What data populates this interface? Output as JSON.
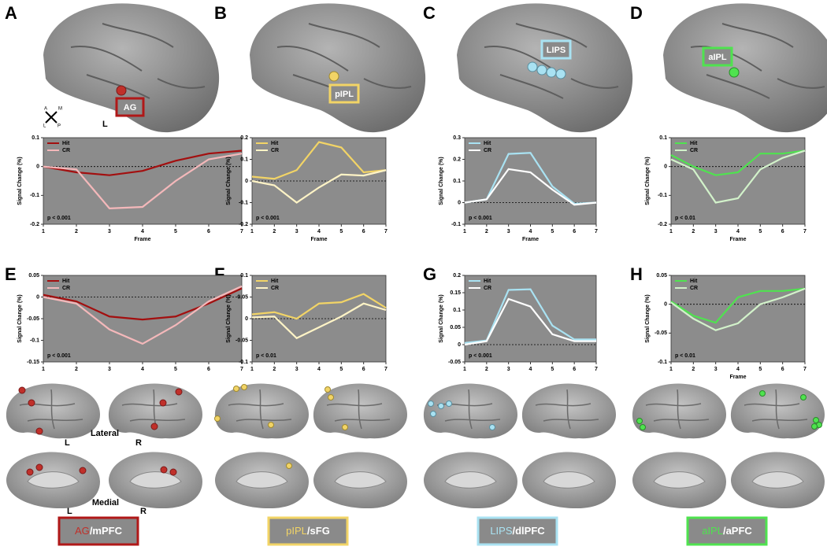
{
  "panels": [
    "A",
    "B",
    "C",
    "D",
    "E",
    "F",
    "G",
    "H"
  ],
  "region_labels": [
    "AG",
    "pIPL",
    "LIPS",
    "aIPL"
  ],
  "compass": {
    "a": "A",
    "m": "M",
    "l": "L",
    "p": "P"
  },
  "brain_labels": {
    "top_l": "L",
    "lateral_l": "L",
    "lateral": "Lateral",
    "lateral_r": "R",
    "medial_l": "L",
    "medial": "Medial",
    "medial_r": "R"
  },
  "network_boxes": [
    {
      "seed": "AG",
      "target": "/mPFC"
    },
    {
      "seed": "pIPL",
      "target": "/sFG"
    },
    {
      "seed": "LIPS",
      "target": "/dlPFC"
    },
    {
      "seed": "aIPL",
      "target": "/aPFC"
    }
  ],
  "chart_data": [
    {
      "type": "line",
      "ylabel": "Signal Change (%)",
      "xlabel": "Frame",
      "annotation": "p < 0.001",
      "zero_line": true,
      "x": [
        1,
        2,
        3,
        4,
        5,
        6,
        7
      ],
      "xlim": [
        1,
        7
      ],
      "xticks": [
        1,
        2,
        3,
        4,
        5,
        6,
        7
      ],
      "ylim": [
        -0.2,
        0.1
      ],
      "yticks": [
        -0.2,
        -0.1,
        0,
        0.1
      ],
      "series": [
        {
          "name": "Hit",
          "color": "#a30f0f",
          "values": [
            0,
            -0.02,
            -0.03,
            -0.015,
            0.02,
            0.045,
            0.055
          ]
        },
        {
          "name": "CR",
          "color": "#f4b8ba",
          "values": [
            0,
            -0.01,
            -0.145,
            -0.14,
            -0.05,
            0.025,
            0.045
          ]
        }
      ]
    },
    {
      "type": "line",
      "ylabel": "Signal Change (%)",
      "xlabel": "Frame",
      "annotation": "p < 0.001",
      "zero_line": true,
      "x": [
        1,
        2,
        3,
        4,
        5,
        6,
        7
      ],
      "xlim": [
        1,
        7
      ],
      "xticks": [
        1,
        2,
        3,
        4,
        5,
        6,
        7
      ],
      "ylim": [
        -0.2,
        0.2
      ],
      "yticks": [
        -0.2,
        -0.1,
        0,
        0.1,
        0.2
      ],
      "series": [
        {
          "name": "Hit",
          "color": "#f2d466",
          "values": [
            0.02,
            0.01,
            0.05,
            0.18,
            0.155,
            0.04,
            0.05
          ]
        },
        {
          "name": "CR",
          "color": "#fff4c6",
          "values": [
            0,
            -0.02,
            -0.1,
            -0.03,
            0.03,
            0.025,
            0.05
          ]
        }
      ]
    },
    {
      "type": "line",
      "ylabel": "Signal Change (%)",
      "xlabel": "Frame",
      "annotation": "p < 0.001",
      "zero_line": true,
      "x": [
        1,
        2,
        3,
        4,
        5,
        6,
        7
      ],
      "xlim": [
        1,
        7
      ],
      "xticks": [
        1,
        2,
        3,
        4,
        5,
        6,
        7
      ],
      "ylim": [
        -0.1,
        0.3
      ],
      "yticks": [
        -0.1,
        0,
        0.1,
        0.2,
        0.3
      ],
      "series": [
        {
          "name": "Hit",
          "color": "#a9e2f2",
          "values": [
            0,
            0.015,
            0.225,
            0.23,
            0.075,
            -0.005,
            0
          ]
        },
        {
          "name": "CR",
          "color": "#ffffff",
          "values": [
            0,
            0.015,
            0.155,
            0.14,
            0.06,
            -0.01,
            0
          ]
        }
      ]
    },
    {
      "type": "line",
      "ylabel": "Signal Change (%)",
      "xlabel": "Frame",
      "annotation": "p < 0.01",
      "zero_line": true,
      "x": [
        1,
        2,
        3,
        4,
        5,
        6,
        7
      ],
      "xlim": [
        1,
        7
      ],
      "xticks": [
        1,
        2,
        3,
        4,
        5,
        6,
        7
      ],
      "ylim": [
        -0.2,
        0.1
      ],
      "yticks": [
        -0.2,
        -0.1,
        0,
        0.1
      ],
      "series": [
        {
          "name": "Hit",
          "color": "#4fe34f",
          "values": [
            0.04,
            0,
            -0.03,
            -0.02,
            0.045,
            0.045,
            0.055
          ]
        },
        {
          "name": "CR",
          "color": "#d2f2ca",
          "values": [
            0.025,
            -0.01,
            -0.125,
            -0.11,
            -0.01,
            0.03,
            0.055
          ]
        }
      ]
    },
    {
      "type": "line",
      "ylabel": "Signal Change (%)",
      "annotation": "p < 0.001",
      "zero_line": true,
      "x": [
        1,
        2,
        3,
        4,
        5,
        6,
        7
      ],
      "xlim": [
        1,
        7
      ],
      "xticks": [
        1,
        2,
        3,
        4,
        5,
        6,
        7
      ],
      "ylim": [
        -0.15,
        0.05
      ],
      "yticks": [
        -0.15,
        -0.1,
        -0.05,
        0,
        0.05
      ],
      "series": [
        {
          "name": "Hit",
          "color": "#a30f0f",
          "values": [
            0.005,
            -0.01,
            -0.045,
            -0.052,
            -0.045,
            -0.015,
            0.02
          ]
        },
        {
          "name": "CR",
          "color": "#f4b8ba",
          "values": [
            0,
            -0.015,
            -0.075,
            -0.108,
            -0.065,
            -0.01,
            0.025
          ]
        }
      ]
    },
    {
      "type": "line",
      "ylabel": "Signal Change (%)",
      "annotation": "p < 0.01",
      "zero_line": true,
      "x": [
        1,
        2,
        3,
        4,
        5,
        6,
        7
      ],
      "xlim": [
        1,
        7
      ],
      "xticks": [
        1,
        2,
        3,
        4,
        5,
        6,
        7
      ],
      "ylim": [
        -0.1,
        0.1
      ],
      "yticks": [
        -0.1,
        -0.05,
        0,
        0.05,
        0.1
      ],
      "series": [
        {
          "name": "Hit",
          "color": "#f2d466",
          "values": [
            0.01,
            0.015,
            0,
            0.035,
            0.038,
            0.057,
            0.025
          ]
        },
        {
          "name": "CR",
          "color": "#fff4c6",
          "values": [
            0.003,
            0.005,
            -0.045,
            -0.02,
            0.005,
            0.035,
            0.02
          ]
        }
      ]
    },
    {
      "type": "line",
      "ylabel": "Signal Change (%)",
      "annotation": "p < 0.001",
      "zero_line": true,
      "x": [
        1,
        2,
        3,
        4,
        5,
        6,
        7
      ],
      "xlim": [
        1,
        7
      ],
      "xticks": [
        1,
        2,
        3,
        4,
        5,
        6,
        7
      ],
      "ylim": [
        -0.05,
        0.2
      ],
      "yticks": [
        -0.05,
        0,
        0.05,
        0.1,
        0.15,
        0.2
      ],
      "series": [
        {
          "name": "Hit",
          "color": "#a9e2f2",
          "values": [
            0.005,
            0.012,
            0.158,
            0.16,
            0.055,
            0.015,
            0.015
          ]
        },
        {
          "name": "CR",
          "color": "#ffffff",
          "values": [
            0,
            0.01,
            0.132,
            0.11,
            0.03,
            0.01,
            0.01
          ]
        }
      ]
    },
    {
      "type": "line",
      "ylabel": "Signal Change (%)",
      "xlabel": "Frame",
      "annotation": "p < 0.01",
      "zero_line": true,
      "x": [
        1,
        2,
        3,
        4,
        5,
        6,
        7
      ],
      "xlim": [
        1,
        7
      ],
      "xticks": [
        1,
        2,
        3,
        4,
        5,
        6,
        7
      ],
      "ylim": [
        -0.1,
        0.05
      ],
      "yticks": [
        -0.1,
        -0.05,
        0,
        0.05
      ],
      "series": [
        {
          "name": "Hit",
          "color": "#4fe34f",
          "values": [
            0.005,
            -0.02,
            -0.032,
            0.012,
            0.023,
            0.023,
            0.027
          ]
        },
        {
          "name": "CR",
          "color": "#d2f2ca",
          "values": [
            0.003,
            -0.025,
            -0.045,
            -0.033,
            0,
            0.012,
            0.027
          ]
        }
      ]
    }
  ]
}
